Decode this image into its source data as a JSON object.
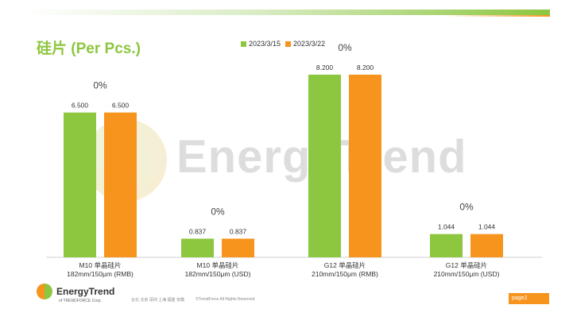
{
  "page": {
    "title": "硅片 (Per Pcs.)",
    "page_label": "page2"
  },
  "watermark": {
    "text": "EnergyTrend"
  },
  "footer": {
    "logo_text": "EnergyTrend",
    "logo_sub": "of TRENDFORCE Corp.",
    "cities": "台北 北京 深圳 上海 福建 安徽",
    "copyright": "©TrendForce All Rights Reserved"
  },
  "colors": {
    "series1": "#8dc63f",
    "series2": "#f7941d",
    "title": "#8dc63f"
  },
  "chart_data": {
    "type": "bar",
    "categories": [
      [
        "M10 单晶硅片",
        "182mm/150μm (RMB)"
      ],
      [
        "M10 单晶硅片",
        "182mm/150μm (USD)"
      ],
      [
        "G12 单晶硅片",
        "210mm/150μm  (RMB)"
      ],
      [
        "G12 单晶硅片",
        "210mm/150μm  (USD)"
      ]
    ],
    "series": [
      {
        "name": "2023/3/15",
        "color": "#8dc63f"
      },
      {
        "name": "2023/3/22",
        "color": "#f7941d"
      }
    ],
    "groups": [
      {
        "values": [
          6.5,
          6.5
        ],
        "labels": [
          "6.500",
          "6.500"
        ],
        "change": "0%"
      },
      {
        "values": [
          0.837,
          0.837
        ],
        "labels": [
          "0.837",
          "0.837"
        ],
        "change": "0%"
      },
      {
        "values": [
          8.2,
          8.2
        ],
        "labels": [
          "8.200",
          "8.200"
        ],
        "change": "0%"
      },
      {
        "values": [
          1.044,
          1.044
        ],
        "labels": [
          "1.044",
          "1.044"
        ],
        "change": "0%"
      }
    ],
    "legend": "top",
    "grid": false
  }
}
